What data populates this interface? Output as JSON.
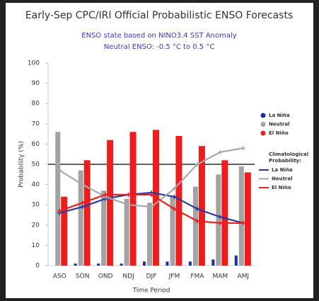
{
  "chart_data": {
    "type": "bar",
    "title": "Early-Sep CPC/IRI Official Probabilistic ENSO Forecasts",
    "subtitle": [
      "ENSO state based on NINO3.4 SST Anomaly",
      "Neutral ENSO: -0.5 °C to 0.5 °C"
    ],
    "x_label": "Time Period",
    "y_label": "Probability (%)",
    "categories": [
      "ASO",
      "SON",
      "OND",
      "NDJ",
      "DJF",
      "JFM",
      "FMA",
      "MAM",
      "AMJ"
    ],
    "ylim": [
      0,
      100
    ],
    "yticks": [
      0,
      10,
      20,
      30,
      40,
      50,
      60,
      70,
      80,
      90,
      100
    ],
    "reference_line": 50,
    "legend": "right",
    "legend_line_title": [
      "Climatological",
      "Probability:"
    ],
    "series": [
      {
        "name": "La Niña",
        "type": "bar",
        "color": "#1f2d9e",
        "values": [
          0,
          1,
          1,
          1,
          2,
          2,
          2,
          3,
          5
        ]
      },
      {
        "name": "Neutral",
        "type": "bar",
        "color": "#a3a3a3",
        "values": [
          66,
          47,
          37,
          33,
          31,
          34,
          39,
          45,
          49
        ]
      },
      {
        "name": "El Niño",
        "type": "bar",
        "color": "#ee1c1c",
        "values": [
          34,
          52,
          62,
          66,
          67,
          64,
          59,
          52,
          46
        ]
      },
      {
        "name": "La Niña",
        "type": "line",
        "color": "#2a3a9e",
        "values": [
          26,
          29,
          33,
          35,
          36,
          34,
          28,
          24,
          21
        ]
      },
      {
        "name": "Neutral",
        "type": "line",
        "color": "#a8a8a8",
        "values": [
          47,
          40,
          34,
          30,
          29,
          38,
          50,
          56,
          58
        ]
      },
      {
        "name": "El Niño",
        "type": "line",
        "color": "#e82020",
        "values": [
          27,
          31,
          35,
          35,
          35,
          28,
          22,
          21,
          21
        ]
      }
    ]
  }
}
